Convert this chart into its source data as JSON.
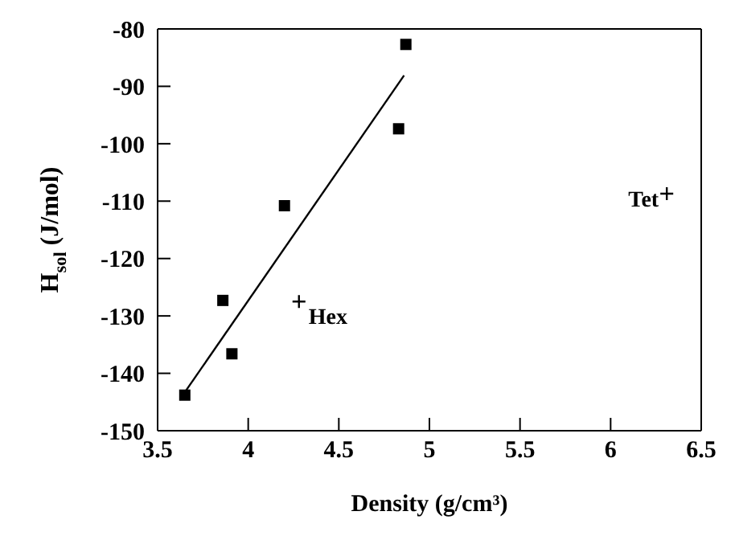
{
  "chart_data": {
    "type": "scatter",
    "xlabel": "Density (g/cm³)",
    "ylabel": "H$_{sol}$  (J/mol)",
    "xlim": [
      3.5,
      6.5
    ],
    "xticks": [
      3.5,
      4,
      4.5,
      5,
      5.5,
      6,
      6.5
    ],
    "ylim": [
      -150,
      -80
    ],
    "yticks": [
      -150,
      -140,
      -130,
      -120,
      -110,
      -100,
      -90,
      -80
    ],
    "series": [
      {
        "marker": "square",
        "color": "#000000",
        "x": [
          4.87,
          4.83,
          4.2
        ],
        "values": [
          -82.7,
          -97.4,
          -110.8
        ]
      },
      {
        "marker": "square",
        "color": "#000000",
        "x": [
          3.86,
          3.91,
          3.65
        ],
        "values": [
          -127.3,
          -136.6,
          -143.8
        ]
      },
      {
        "marker": "cross",
        "color": "#000000",
        "x": [
          4.28,
          6.31
        ],
        "values": [
          -127.5,
          -108.7
        ]
      },
      {
        "type": "line",
        "marker": "none",
        "color": "#000000",
        "x": [
          3.65,
          4.86
        ],
        "values": [
          -143.3,
          -88.1
        ]
      }
    ],
    "annotations": [
      {
        "text": "Hex",
        "x": 4.28,
        "y": -127.5
      },
      {
        "text": "Tet",
        "x": 6.31,
        "y": -108.7
      }
    ]
  }
}
